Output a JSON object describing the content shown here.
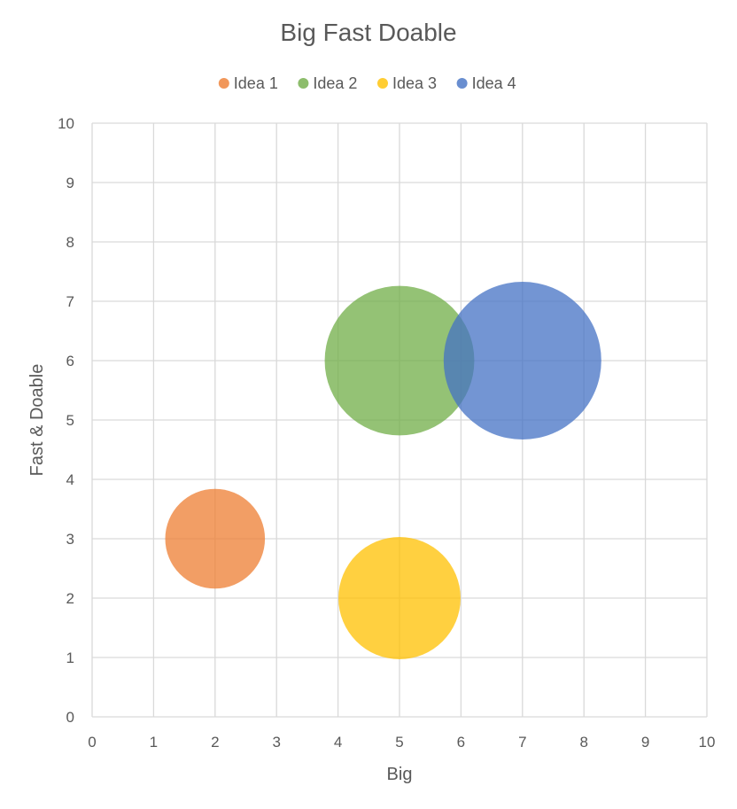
{
  "chart_data": {
    "type": "bubble",
    "title": "Big Fast Doable",
    "xlabel": "Big",
    "ylabel": "Fast & Doable",
    "xlim": [
      0,
      10
    ],
    "ylim": [
      0,
      10
    ],
    "xticks": [
      "0",
      "1",
      "2",
      "3",
      "4",
      "5",
      "6",
      "7",
      "8",
      "9",
      "10"
    ],
    "yticks": [
      "0",
      "1",
      "2",
      "3",
      "4",
      "5",
      "6",
      "7",
      "8",
      "9",
      "10"
    ],
    "grid": true,
    "legend_position": "top",
    "series": [
      {
        "name": "Idea 1",
        "x": 2,
        "y": 3,
        "size": 4,
        "color": "#ED7D31"
      },
      {
        "name": "Idea 2",
        "x": 5,
        "y": 6,
        "size": 9,
        "color": "#70AD47"
      },
      {
        "name": "Idea 3",
        "x": 5,
        "y": 2,
        "size": 6,
        "color": "#FFC000"
      },
      {
        "name": "Idea 4",
        "x": 7,
        "y": 6,
        "size": 10,
        "color": "#4472C4"
      }
    ]
  }
}
